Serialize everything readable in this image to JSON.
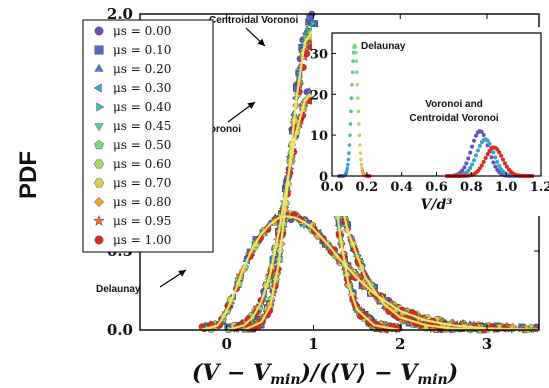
{
  "chart_data": {
    "type": "scatter",
    "ylabel": "PDF",
    "xlabel": "(V − V_min)/(⟨V⟩ − V_min)",
    "xlim": [
      -1.0,
      3.6
    ],
    "ylim": [
      0.0,
      2.0
    ],
    "xticks": [
      "0",
      "1",
      "2",
      "3"
    ],
    "yticks": [
      "0.0",
      "0.5",
      "1.0",
      "1.5",
      "2.0"
    ],
    "legend_position": "top-left",
    "series": [
      {
        "name": "μs = 0.00",
        "color": "#6b4fbf",
        "marker": "circle"
      },
      {
        "name": "μs = 0.10",
        "color": "#5466c8",
        "marker": "square"
      },
      {
        "name": "μs = 0.20",
        "color": "#3f80d0",
        "marker": "triangle-up"
      },
      {
        "name": "μs = 0.30",
        "color": "#35a1cf",
        "marker": "triangle-left"
      },
      {
        "name": "μs = 0.40",
        "color": "#3fbcb7",
        "marker": "triangle-right"
      },
      {
        "name": "μs = 0.45",
        "color": "#5ccb9a",
        "marker": "triangle-down"
      },
      {
        "name": "μs = 0.50",
        "color": "#7ed580",
        "marker": "pentagon"
      },
      {
        "name": "μs = 0.60",
        "color": "#a8d866",
        "marker": "hexagon"
      },
      {
        "name": "μs = 0.70",
        "color": "#d6cf4f",
        "marker": "hexagon"
      },
      {
        "name": "μs = 0.80",
        "color": "#f0a143",
        "marker": "diamond"
      },
      {
        "name": "μs = 0.95",
        "color": "#ef6a35",
        "marker": "star"
      },
      {
        "name": "μs = 1.00",
        "color": "#e3291d",
        "marker": "circle"
      }
    ],
    "curves": [
      {
        "label": "Delaunay",
        "x": [
          -0.3,
          -0.1,
          0.0,
          0.1,
          0.2,
          0.3,
          0.4,
          0.5,
          0.6,
          0.7,
          0.8,
          0.9,
          1.0,
          1.1,
          1.2,
          1.3,
          1.5,
          1.7,
          2.0,
          2.3,
          2.6,
          3.0,
          3.6
        ],
        "y": [
          0.0,
          0.03,
          0.12,
          0.25,
          0.4,
          0.52,
          0.61,
          0.67,
          0.71,
          0.72,
          0.71,
          0.68,
          0.64,
          0.58,
          0.52,
          0.45,
          0.33,
          0.23,
          0.12,
          0.06,
          0.03,
          0.01,
          0.0
        ]
      },
      {
        "label": "Voronoi",
        "x": [
          0.0,
          0.2,
          0.3,
          0.4,
          0.5,
          0.6,
          0.7,
          0.8,
          0.9,
          0.95,
          1.0,
          1.1,
          1.2,
          1.3,
          1.4,
          1.6,
          1.8,
          2.0,
          2.3,
          2.6,
          3.0
        ],
        "y": [
          0.0,
          0.03,
          0.08,
          0.18,
          0.35,
          0.62,
          0.95,
          1.25,
          1.45,
          1.49,
          1.47,
          1.33,
          1.1,
          0.85,
          0.62,
          0.33,
          0.17,
          0.08,
          0.03,
          0.01,
          0.0
        ]
      },
      {
        "label": "Centroidal Voronoi",
        "x": [
          0.2,
          0.4,
          0.5,
          0.6,
          0.7,
          0.8,
          0.9,
          1.0,
          1.1,
          1.2,
          1.3,
          1.4,
          1.5,
          1.7,
          2.0
        ],
        "y": [
          0.0,
          0.05,
          0.15,
          0.42,
          0.9,
          1.45,
          1.82,
          1.9,
          1.6,
          1.1,
          0.62,
          0.3,
          0.13,
          0.03,
          0.0
        ]
      }
    ],
    "annotations": [
      "Centroidal Voronoi",
      "Voronoi",
      "Delaunay"
    ],
    "inset": {
      "xlabel": "V/d³",
      "xlim": [
        0.0,
        1.2
      ],
      "ylim": [
        0,
        35
      ],
      "xticks": [
        "0.0",
        "0.2",
        "0.4",
        "0.6",
        "0.8",
        "1.0",
        "1.2"
      ],
      "yticks": [
        "0",
        "10",
        "20",
        "30"
      ],
      "annotations": [
        "Delaunay",
        "Voronoi and",
        "Centroidal Voronoi"
      ],
      "delaunay_peak": {
        "x": 0.13,
        "y": 32
      },
      "voronoi_peaks": [
        {
          "mu": "0.00",
          "x": 0.85,
          "y": 11
        },
        {
          "mu": "0.30",
          "x": 0.88,
          "y": 9
        },
        {
          "mu": "1.00",
          "x": 0.93,
          "y": 7
        }
      ]
    }
  }
}
